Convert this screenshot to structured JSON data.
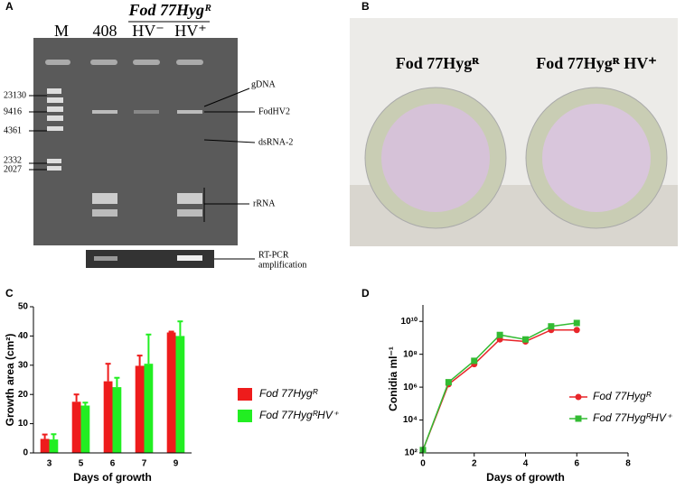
{
  "panels": {
    "a": {
      "letter": "A",
      "lanes": [
        "M",
        "408",
        "HV⁻",
        "HV⁺"
      ],
      "group": "Fod 77Hygᴿ",
      "sizes": [
        "23130",
        "9416",
        "4361",
        "2332",
        "2027"
      ],
      "bands": [
        "gDNA",
        "FodHV2",
        "dsRNA-2",
        "rRNA"
      ],
      "rt": [
        "RT-PCR",
        "amplification"
      ]
    },
    "b": {
      "letter": "B",
      "plates": [
        "Fod 77Hygᴿ",
        "Fod 77Hygᴿ HV⁺"
      ]
    },
    "c": {
      "letter": "C"
    },
    "d": {
      "letter": "D"
    }
  },
  "chart_data": [
    {
      "type": "bar",
      "categories": [
        "3",
        "5",
        "6",
        "7",
        "9"
      ],
      "xlabel": "Days of growth",
      "ylabel": "Growth area (cm²)",
      "ylim": [
        0,
        50
      ],
      "yticks": [
        0,
        10,
        20,
        30,
        40,
        50
      ],
      "series": [
        {
          "name": "Fod 77Hygᴿ",
          "color": "#ee1c1c",
          "values": [
            4.8,
            17.5,
            24.5,
            29.8,
            41.2
          ],
          "errors": [
            1.5,
            2.5,
            6,
            3.5,
            0.3
          ]
        },
        {
          "name": "Fod 77HygᴿHV⁺",
          "color": "#22ee22",
          "values": [
            4.6,
            16.2,
            22.5,
            30.5,
            40
          ],
          "errors": [
            1.8,
            1,
            3.2,
            10,
            5
          ]
        }
      ]
    },
    {
      "type": "line",
      "log_y": true,
      "x": [
        0,
        1,
        2,
        3,
        4,
        5,
        6
      ],
      "xlabel": "Days of growth",
      "ylabel": "Conidia ml⁻¹",
      "xlim": [
        0,
        8
      ],
      "xticks": [
        0,
        2,
        4,
        6,
        8
      ],
      "ylim": [
        100,
        100000000000
      ],
      "yticks": [
        {
          "value": 100,
          "label": "10²"
        },
        {
          "value": 10000,
          "label": "10⁴"
        },
        {
          "value": 1000000,
          "label": "10⁶"
        },
        {
          "value": 100000000,
          "label": "10⁸"
        },
        {
          "value": 10000000000,
          "label": "10¹⁰"
        }
      ],
      "series": [
        {
          "name": "Fod 77Hygᴿ",
          "color": "#e8262a",
          "marker": "circle",
          "values": [
            150,
            1500000,
            25000000,
            800000000,
            600000000,
            3000000000,
            3000000000
          ]
        },
        {
          "name": "Fod 77HygᴿHV⁺",
          "color": "#33bb33",
          "marker": "square",
          "values": [
            150,
            2000000,
            40000000,
            1500000000,
            800000000,
            5000000000,
            8000000000
          ]
        }
      ]
    }
  ]
}
